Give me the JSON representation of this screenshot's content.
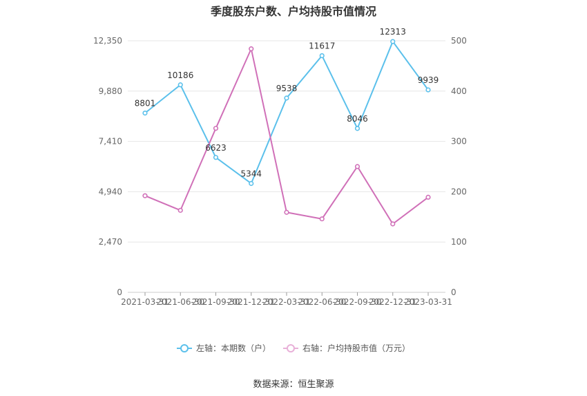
{
  "chart_data": {
    "type": "line",
    "title": "季度股东户数、户均持股市值情况",
    "categories": [
      "2021-03-31",
      "2021-06-30",
      "2021-09-30",
      "2021-12-31",
      "2022-03-31",
      "2022-06-30",
      "2022-09-30",
      "2022-12-31",
      "2023-03-31"
    ],
    "left_axis": {
      "ticks": [
        "0",
        "2,470",
        "4,940",
        "7,410",
        "9,880",
        "12,350"
      ],
      "ylim": [
        0,
        12350
      ]
    },
    "right_axis": {
      "ticks": [
        "0",
        "100",
        "200",
        "300",
        "400",
        "500"
      ],
      "ylim": [
        0,
        500
      ]
    },
    "grid": true,
    "legend_position": "bottom",
    "series": [
      {
        "name": "左轴：本期数（户）",
        "axis": "left",
        "color": "#5bc0eb",
        "values": [
          8801,
          10186,
          6623,
          5344,
          9538,
          11617,
          8046,
          12313,
          9939
        ],
        "labels": [
          "8801",
          "10186",
          "6623",
          "5344",
          "9538",
          "11617",
          "8046",
          "12313",
          "9939"
        ]
      },
      {
        "name": "右轴：户均持股市值（万元）",
        "axis": "right",
        "color": "#d070b8",
        "values": [
          192,
          163,
          326,
          484,
          159,
          146,
          250,
          136,
          189
        ]
      }
    ]
  },
  "source": "数据来源：恒生聚源"
}
